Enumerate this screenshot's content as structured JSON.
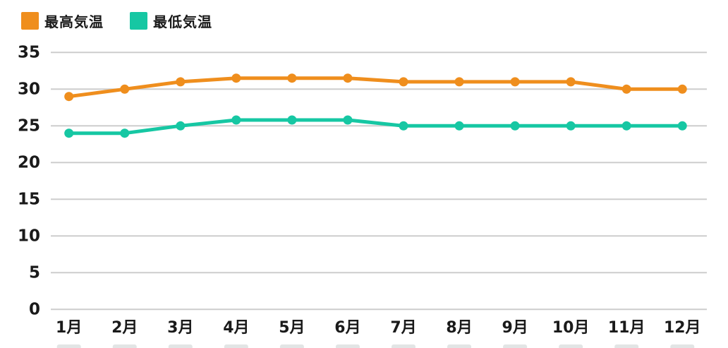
{
  "legend": {
    "series1_label": "最高気温",
    "series2_label": "最低気温"
  },
  "colors": {
    "series1": "#EF8E1D",
    "series2": "#16C7A3",
    "grid": "#CDCDCD",
    "text": "#1A1A1A",
    "background": "#FFFFFF",
    "bottom_dash": "#E2E5E5"
  },
  "chart_data": {
    "type": "line",
    "categories": [
      "1月",
      "2月",
      "3月",
      "4月",
      "5月",
      "6月",
      "7月",
      "8月",
      "9月",
      "10月",
      "11月",
      "12月"
    ],
    "series": [
      {
        "name": "最高気温",
        "color": "#EF8E1D",
        "values": [
          29,
          30,
          31,
          31.5,
          31.5,
          31.5,
          31,
          31,
          31,
          31,
          30,
          30
        ]
      },
      {
        "name": "最低気温",
        "color": "#16C7A3",
        "values": [
          24,
          24,
          25,
          25.8,
          25.8,
          25.8,
          25,
          25,
          25,
          25,
          25,
          25
        ]
      }
    ],
    "yticks": [
      0,
      5,
      10,
      15,
      20,
      25,
      30,
      35
    ],
    "ylim": [
      0,
      35
    ],
    "grid": "horizontal-only",
    "legend_position": "top-left",
    "xlabel": "",
    "ylabel": ""
  }
}
